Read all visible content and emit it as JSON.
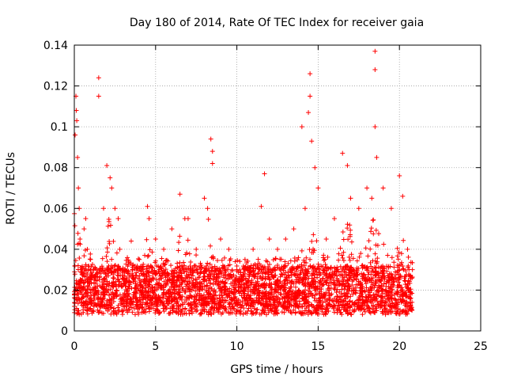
{
  "chart_data": {
    "type": "scatter",
    "title": "Day 180 of 2014, Rate Of TEC Index for receiver gaia",
    "xlabel": "GPS time / hours",
    "ylabel": "ROTI / TECUs",
    "xlim": [
      0,
      25
    ],
    "ylim": [
      0,
      0.14
    ],
    "x_ticks": [
      0,
      5,
      10,
      15,
      20,
      25
    ],
    "y_ticks": [
      0,
      0.02,
      0.04,
      0.06,
      0.08,
      0.1,
      0.12,
      0.14
    ],
    "x_tick_labels": [
      "0",
      "5",
      "10",
      "15",
      "20",
      "25"
    ],
    "y_tick_labels": [
      "0",
      "0.02",
      "0.04",
      "0.06",
      "0.08",
      "0.1",
      "0.12",
      "0.14"
    ],
    "grid": true,
    "marker": "plus",
    "marker_color": "#ff0000",
    "data_range_x": [
      0,
      20.8
    ],
    "series": [
      {
        "x": [
          0.0,
          0.05,
          0.1,
          0.12,
          0.15,
          0.2,
          0.25,
          0.3,
          0.35,
          0.4,
          0.5,
          0.6,
          0.7,
          0.8,
          1.0,
          1.2,
          1.5,
          1.5,
          1.8,
          2.0,
          2.2,
          2.3,
          2.5,
          2.7,
          2.8,
          3.0,
          3.5,
          4.0,
          4.5,
          4.6,
          5.0,
          5.5,
          6.0,
          6.5,
          6.8,
          7.0,
          7.5,
          8.0,
          8.2,
          8.4,
          8.5,
          8.5,
          9.0,
          9.5,
          10.0,
          10.5,
          11.0,
          11.5,
          11.7,
          12.0,
          12.5,
          13.0,
          13.5,
          14.0,
          14.2,
          14.4,
          14.5,
          14.5,
          14.6,
          14.8,
          15.0,
          15.5,
          16.0,
          16.5,
          16.8,
          17.0,
          17.5,
          18.0,
          18.3,
          18.5,
          18.5,
          18.5,
          18.6,
          19.0,
          19.5,
          20.0,
          20.2,
          20.5,
          20.8
        ],
        "y": [
          0.018,
          0.096,
          0.115,
          0.108,
          0.103,
          0.085,
          0.07,
          0.06,
          0.045,
          0.03,
          0.025,
          0.05,
          0.055,
          0.04,
          0.035,
          0.03,
          0.124,
          0.115,
          0.06,
          0.081,
          0.075,
          0.07,
          0.06,
          0.055,
          0.04,
          0.03,
          0.044,
          0.035,
          0.061,
          0.055,
          0.045,
          0.04,
          0.05,
          0.067,
          0.055,
          0.055,
          0.04,
          0.065,
          0.06,
          0.094,
          0.088,
          0.082,
          0.045,
          0.04,
          0.03,
          0.035,
          0.04,
          0.061,
          0.077,
          0.045,
          0.04,
          0.045,
          0.05,
          0.1,
          0.06,
          0.107,
          0.126,
          0.115,
          0.093,
          0.08,
          0.07,
          0.045,
          0.055,
          0.087,
          0.081,
          0.065,
          0.06,
          0.07,
          0.065,
          0.137,
          0.128,
          0.1,
          0.085,
          0.07,
          0.06,
          0.076,
          0.066,
          0.04,
          0.03
        ]
      }
    ]
  }
}
